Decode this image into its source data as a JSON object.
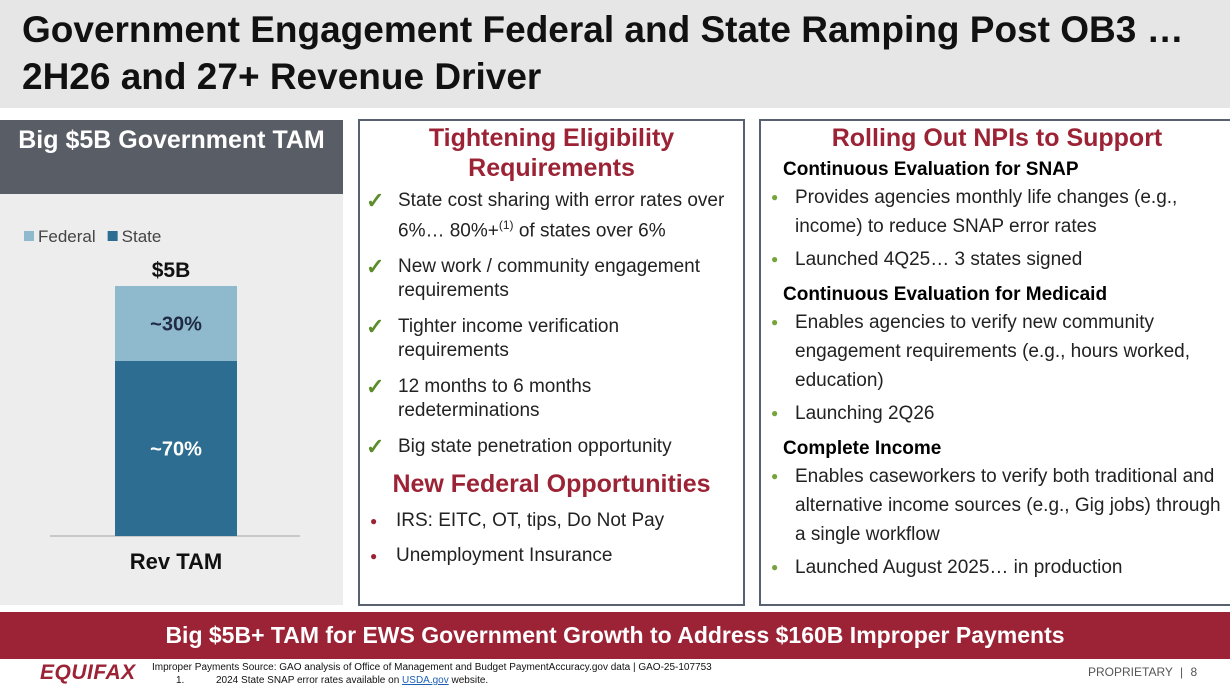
{
  "header": {
    "title": "Government Engagement Federal and State Ramping Post OB3 … 2H26 and 27+ Revenue Driver"
  },
  "left_panel": {
    "title": "Big $5B Government TAM"
  },
  "chart_data": {
    "type": "stacked_bar",
    "categories": [
      "Rev TAM"
    ],
    "total_label": "$5B",
    "series": [
      {
        "name": "Federal",
        "color": "#8fb9cd",
        "values": [
          30
        ],
        "value_labels": [
          "~30%"
        ]
      },
      {
        "name": "State",
        "color": "#2e6d92",
        "values": [
          70
        ],
        "value_labels": [
          "~70%"
        ]
      }
    ]
  },
  "middle_panel": {
    "title": "Tightening Eligibility Requirements",
    "checks": [
      [
        "State cost sharing with error rates over 6%… 80%+",
        "(1)",
        " of states over 6%"
      ],
      [
        "New work / community engagement requirements"
      ],
      [
        "Tighter income verification requirements"
      ],
      [
        "12 months to 6 months redeterminations"
      ],
      [
        "Big state penetration opportunity"
      ]
    ],
    "subtitle": "New Federal Opportunities",
    "bullets": [
      "IRS: EITC, OT, tips, Do Not Pay",
      "Unemployment Insurance"
    ]
  },
  "right_panel": {
    "title": "Rolling Out NPIs to Support",
    "sections": [
      {
        "heading": "Continuous Evaluation for SNAP",
        "bullets": [
          "Provides agencies monthly life changes (e.g., income) to reduce SNAP error rates",
          "Launched 4Q25… 3 states signed"
        ]
      },
      {
        "heading": "Continuous Evaluation for Medicaid",
        "bullets": [
          "Enables agencies to verify new community engagement requirements (e.g., hours worked, education)",
          "Launching 2Q26"
        ]
      },
      {
        "heading": "Complete Income",
        "bullets": [
          "Enables caseworkers to verify both traditional and alternative income sources (e.g., Gig jobs) through a single workflow",
          "Launched August 2025… in production"
        ]
      }
    ]
  },
  "banner": {
    "text": "Big $5B+ TAM for EWS Government Growth to Address $160B Improper Payments"
  },
  "footer": {
    "logo": "EQUIFAX",
    "source": "Improper Payments Source: GAO analysis of Office of Management and Budget PaymentAccuracy.gov data | GAO-25-107753",
    "note_number": "1.",
    "note_text": "2024 State SNAP error rates available on ",
    "note_link": "USDA.gov",
    "note_end": " website.",
    "proprietary": "PROPRIETARY",
    "separator": "|",
    "page": "8"
  }
}
